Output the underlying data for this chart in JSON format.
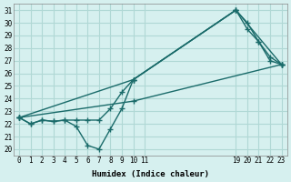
{
  "xlabel": "Humidex (Indice chaleur)",
  "ylabel": "",
  "xlim": [
    -0.5,
    23.5
  ],
  "ylim": [
    19.5,
    31.5
  ],
  "xticks": [
    0,
    1,
    2,
    3,
    4,
    5,
    6,
    7,
    8,
    9,
    10,
    11,
    19,
    20,
    21,
    22,
    23
  ],
  "yticks": [
    20,
    21,
    22,
    23,
    24,
    25,
    26,
    27,
    28,
    29,
    30,
    31
  ],
  "bg_color": "#d6f0ef",
  "grid_color": "#b0d8d5",
  "line_color": "#1a6b6a",
  "lines": [
    {
      "x": [
        0,
        1,
        2,
        3,
        4,
        5,
        6,
        7,
        8,
        9,
        10,
        19,
        20,
        21,
        22,
        23
      ],
      "y": [
        22.5,
        22.0,
        22.3,
        22.2,
        22.3,
        21.8,
        20.3,
        20.0,
        21.6,
        23.2,
        25.5,
        31.0,
        30.0,
        28.5,
        27.3,
        26.7
      ]
    },
    {
      "x": [
        0,
        1,
        2,
        3,
        4,
        5,
        6,
        7,
        8,
        9,
        10,
        19,
        20,
        21,
        22,
        23
      ],
      "y": [
        22.5,
        22.0,
        22.3,
        22.2,
        22.3,
        22.3,
        22.3,
        22.3,
        23.2,
        24.5,
        25.5,
        31.0,
        29.5,
        28.5,
        27.0,
        26.7
      ]
    },
    {
      "x": [
        0,
        10,
        19,
        23
      ],
      "y": [
        22.5,
        25.5,
        31.0,
        26.7
      ]
    },
    {
      "x": [
        0,
        10,
        23
      ],
      "y": [
        22.5,
        23.8,
        26.7
      ]
    }
  ]
}
